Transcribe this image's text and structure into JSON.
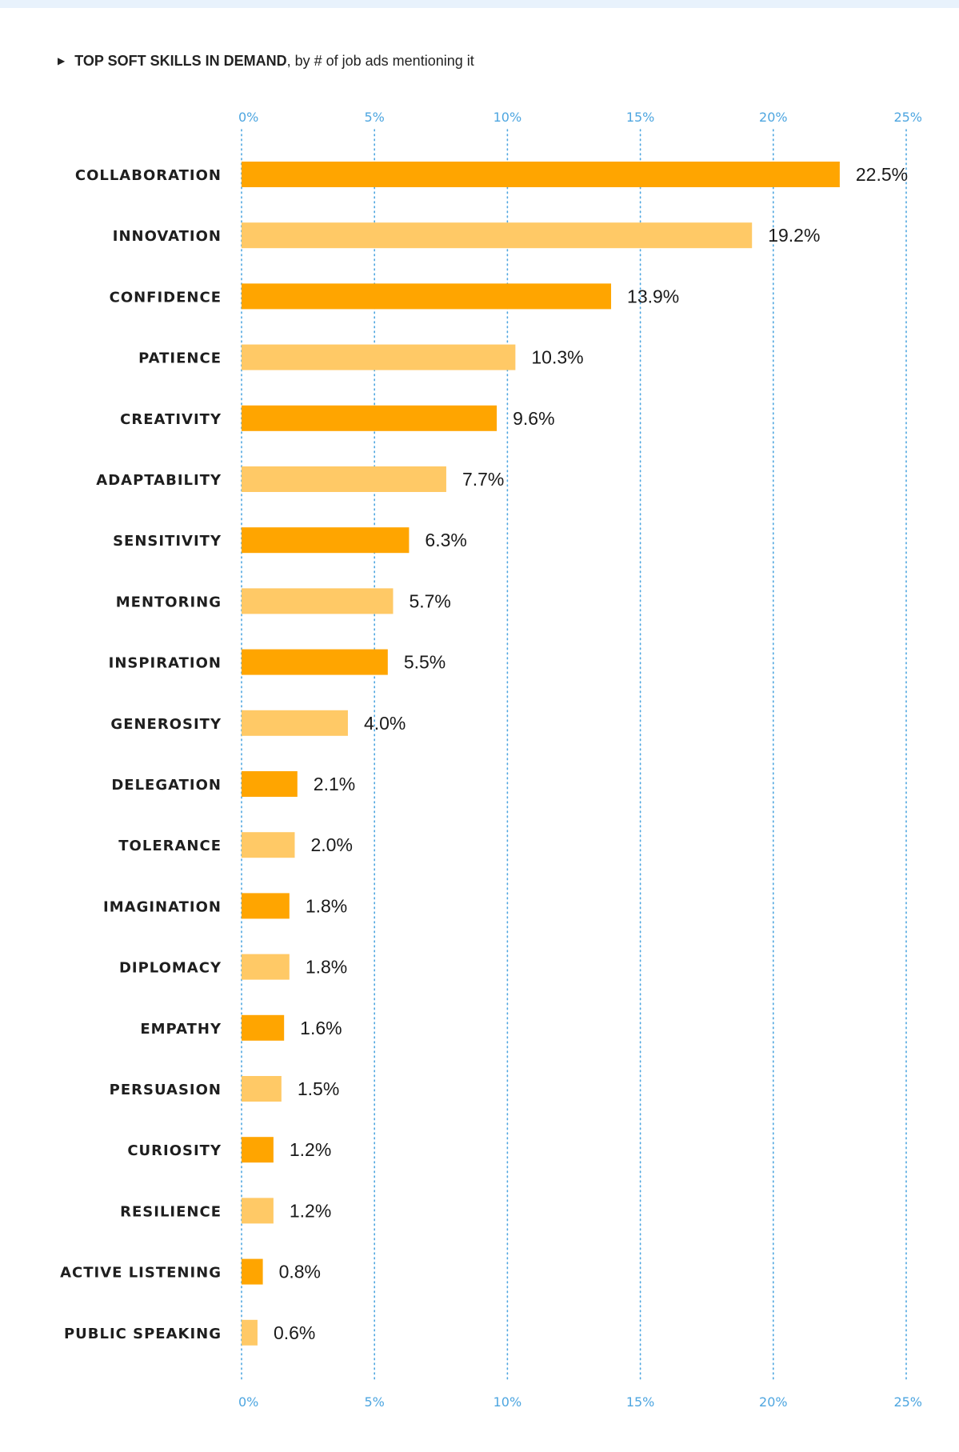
{
  "header": {
    "marker_glyph": "▶",
    "title": "TOP SOFT SKILLS IN DEMAND",
    "subtitle": ", by # of job ads mentioning it"
  },
  "colors": {
    "bar_primary": "#ffa500",
    "bar_secondary": "#ffc966",
    "grid": "#4ea6e0",
    "tick_text": "#4ea6e0",
    "label_text": "#1e1e1e",
    "top_strip": "#e8f2fc"
  },
  "chart_data": {
    "type": "bar",
    "orientation": "horizontal",
    "title": "TOP SOFT SKILLS IN DEMAND",
    "subtitle": ", by # of job ads mentioning it",
    "xlabel": "",
    "ylabel": "",
    "xlim": [
      0,
      25
    ],
    "ticks": [
      0,
      5,
      10,
      15,
      20,
      25
    ],
    "tick_labels": [
      "0%",
      "5%",
      "10%",
      "15%",
      "20%",
      "25%"
    ],
    "tick_axes": [
      "top",
      "bottom"
    ],
    "grid": "dotted vertical",
    "legend": "none",
    "categories": [
      "COLLABORATION",
      "INNOVATION",
      "CONFIDENCE",
      "PATIENCE",
      "CREATIVITY",
      "ADAPTABILITY",
      "SENSITIVITY",
      "MENTORING",
      "INSPIRATION",
      "GENEROSITY",
      "DELEGATION",
      "TOLERANCE",
      "IMAGINATION",
      "DIPLOMACY",
      "EMPATHY",
      "PERSUASION",
      "CURIOSITY",
      "RESILIENCE",
      "ACTIVE LISTENING",
      "PUBLIC SPEAKING"
    ],
    "values": [
      22.5,
      19.2,
      13.9,
      10.3,
      9.6,
      7.7,
      6.3,
      5.7,
      5.5,
      4.0,
      2.1,
      2.0,
      1.8,
      1.8,
      1.6,
      1.5,
      1.2,
      1.2,
      0.8,
      0.6
    ],
    "value_labels": [
      "22.5%",
      "19.2%",
      "13.9%",
      "10.3%",
      "9.6%",
      "7.7%",
      "6.3%",
      "5.7%",
      "5.5%",
      "4.0%",
      "2.1%",
      "2.0%",
      "1.8%",
      "1.8%",
      "1.6%",
      "1.5%",
      "1.2%",
      "1.2%",
      "0.8%",
      "0.6%"
    ],
    "bar_colors": "alternating primary / secondary"
  }
}
